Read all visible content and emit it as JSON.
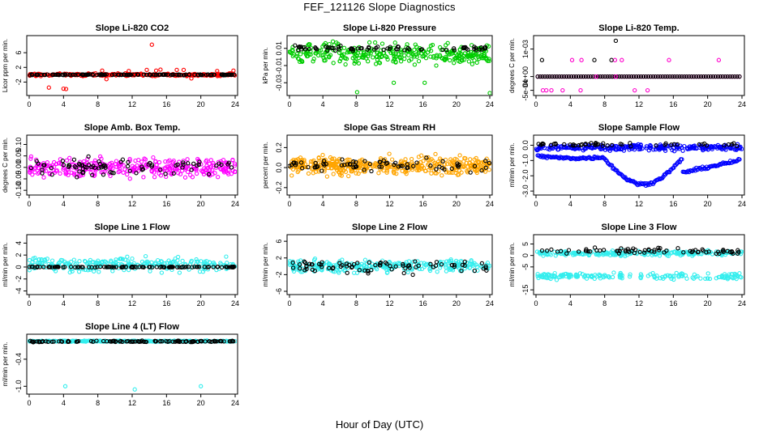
{
  "figure": {
    "title": "FEF_121126  Slope Diagnostics",
    "xlabel": "Hour of Day (UTC)"
  },
  "chart_data": [
    {
      "type": "scatter",
      "title": "Slope Li-820 CO2",
      "ylabel": "Licor ppm per min.",
      "xlim": [
        0,
        24
      ],
      "xticks": [
        0,
        4,
        8,
        12,
        16,
        20,
        24
      ],
      "ylim": [
        -5,
        10
      ],
      "yticks": [
        -2,
        2,
        6
      ],
      "ytick_labels": [
        "-2",
        "2",
        "6"
      ],
      "series": [
        {
          "color": "#ff0000",
          "n": 240,
          "center": 0,
          "spread": 0.35,
          "points": [
            [
              14.3,
              8.2
            ],
            [
              4.0,
              -3.8
            ],
            [
              4.3,
              -3.9
            ],
            [
              2.3,
              -3.5
            ],
            [
              8.5,
              1.1
            ],
            [
              13.7,
              1.3
            ],
            [
              14.8,
              1.1
            ],
            [
              15.3,
              1.4
            ],
            [
              17.2,
              1.3
            ],
            [
              18.0,
              1.3
            ],
            [
              23.8,
              1.1
            ],
            [
              9.0,
              -1.2
            ],
            [
              11.6,
              1.0
            ],
            [
              18.9,
              -1.0
            ],
            [
              21.9,
              1.0
            ]
          ]
        },
        {
          "color": "#000000",
          "n": 130,
          "center": 0,
          "spread": 0.12
        }
      ]
    },
    {
      "type": "scatter",
      "title": "Slope Li-820 Pressure",
      "ylabel": "kPa per min.",
      "xlim": [
        0,
        24
      ],
      "xticks": [
        0,
        4,
        8,
        12,
        16,
        20,
        24
      ],
      "ylim": [
        -0.042,
        0.022
      ],
      "yticks": [
        0.01,
        -0.01,
        -0.03
      ],
      "ytick_labels": [
        "0.01",
        "-0.01",
        "-0.03"
      ],
      "series": [
        {
          "color": "#00cc00",
          "n": 330,
          "center": 0.003,
          "spread": 0.012,
          "points": [
            [
              8.1,
              -0.041
            ],
            [
              24.0,
              -0.042
            ],
            [
              12.5,
              -0.03
            ],
            [
              16.2,
              -0.03
            ],
            [
              4.3,
              0.016
            ],
            [
              5.2,
              0.018
            ]
          ]
        },
        {
          "color": "#000000",
          "n": 70,
          "center": 0.01,
          "spread": 0.003
        }
      ]
    },
    {
      "type": "scatter",
      "title": "Slope Li-820 Temp.",
      "ylabel": "degrees C per min.",
      "xlim": [
        0,
        24
      ],
      "xticks": [
        0,
        4,
        8,
        12,
        16,
        20,
        24
      ],
      "ylim": [
        -0.0006,
        0.0014
      ],
      "yticks": [
        0.001,
        0,
        -0.0005
      ],
      "ytick_labels": [
        "1e-03",
        "0e+00",
        "-5e-04"
      ],
      "series": [
        {
          "color": "#ff00cc",
          "n": 0,
          "center": 0,
          "spread": 0,
          "points": [
            [
              4.2,
              0.0006
            ],
            [
              5.3,
              0.0006
            ],
            [
              9.2,
              0.0006
            ],
            [
              10.0,
              0.0006
            ],
            [
              15.5,
              0.0006
            ],
            [
              21.3,
              0.0006
            ],
            [
              0.8,
              -0.0005
            ],
            [
              1.2,
              -0.0005
            ],
            [
              1.8,
              -0.0005
            ],
            [
              3.1,
              -0.0005
            ],
            [
              5.2,
              -0.0005
            ],
            [
              11.5,
              -0.0005
            ],
            [
              13.0,
              -0.0005
            ],
            [
              7.0,
              0.0
            ],
            [
              9.3,
              0.0
            ]
          ]
        },
        {
          "color": "#000000",
          "n": 0,
          "center": 0,
          "spread": 0,
          "points": [
            [
              0.7,
              0.0006
            ],
            [
              6.8,
              0.0006
            ],
            [
              8.8,
              0.0006
            ],
            [
              9.3,
              0.0013
            ]
          ]
        }
      ],
      "line_series": [
        {
          "color": "#ff00cc",
          "y": 0
        },
        {
          "color": "#000000",
          "y": 0
        }
      ]
    },
    {
      "type": "scatter",
      "title": "Slope Amb. Box Temp.",
      "ylabel": "degrees C per min.",
      "xlim": [
        0,
        24
      ],
      "xticks": [
        0,
        4,
        8,
        12,
        16,
        20,
        24
      ],
      "ylim": [
        -0.11,
        0.13
      ],
      "yticks": [
        0.1,
        0.05,
        0.0,
        -0.05,
        -0.1
      ],
      "ytick_labels": [
        "0.10",
        "0.05",
        "0.00",
        "-0.05",
        "-0.10"
      ],
      "series": [
        {
          "color": "#ff00ff",
          "n": 330,
          "center": 0,
          "spread": 0.045
        },
        {
          "color": "#000000",
          "n": 80,
          "center": 0,
          "spread": 0.035
        }
      ]
    },
    {
      "type": "scatter",
      "title": "Slope Gas Stream RH",
      "ylabel": "percent per min.",
      "xlim": [
        0,
        24
      ],
      "xticks": [
        0,
        4,
        8,
        12,
        16,
        20,
        24
      ],
      "ylim": [
        -0.25,
        0.3
      ],
      "yticks": [
        0.2,
        0.0,
        -0.2
      ],
      "ytick_labels": [
        "0.2",
        "0.0",
        "-0.2"
      ],
      "series": [
        {
          "color": "#ffa500",
          "n": 420,
          "center": 0.02,
          "spread": 0.09
        },
        {
          "color": "#000000",
          "n": 70,
          "center": 0.02,
          "spread": 0.06
        }
      ]
    },
    {
      "type": "scatter",
      "title": "Slope Sample Flow",
      "ylabel": "ml/min per min.",
      "xlim": [
        0,
        24
      ],
      "xticks": [
        0,
        4,
        8,
        12,
        16,
        20,
        24
      ],
      "ylim": [
        -3.1,
        0.5
      ],
      "yticks": [
        0.0,
        -1.0,
        -2.0,
        -3.0
      ],
      "ytick_labels": [
        "0.0",
        "-1.0",
        "-2.0",
        "-3.0"
      ],
      "series": [
        {
          "color": "#0000ff",
          "n": 280,
          "center": -0.15,
          "spread": 0.2
        },
        {
          "color": "#0000ff",
          "n": 0,
          "center": 0,
          "spread": 0,
          "curve": true
        },
        {
          "color": "#000000",
          "n": 50,
          "center": 0.05,
          "spread": 0.1
        }
      ]
    },
    {
      "type": "scatter",
      "title": "Slope Line 1 Flow",
      "ylabel": "ml/min per min.",
      "xlim": [
        0,
        24
      ],
      "xticks": [
        0,
        4,
        8,
        12,
        16,
        20,
        24
      ],
      "ylim": [
        -4.2,
        5
      ],
      "yticks": [
        4,
        2,
        0,
        -2,
        -4
      ],
      "ytick_labels": [
        "4",
        "2",
        "0",
        "-2",
        "-4"
      ],
      "series": [
        {
          "color": "#33eeee",
          "n": 260,
          "center": 0.4,
          "spread": 1.3
        },
        {
          "color": "#000000",
          "n": 110,
          "center": 0,
          "spread": 0.06
        }
      ]
    },
    {
      "type": "scatter",
      "title": "Slope Line 2 Flow",
      "ylabel": "ml/min per min.",
      "xlim": [
        0,
        24
      ],
      "xticks": [
        0,
        4,
        8,
        12,
        16,
        20,
        24
      ],
      "ylim": [
        -6.2,
        7
      ],
      "yticks": [
        6,
        2,
        -2,
        -6
      ],
      "ytick_labels": [
        "6",
        "2",
        "-2",
        "-6"
      ],
      "series": [
        {
          "color": "#33eeee",
          "n": 300,
          "center": 0,
          "spread": 1.5
        },
        {
          "color": "#000000",
          "n": 80,
          "center": 0,
          "spread": 1.6
        }
      ]
    },
    {
      "type": "scatter",
      "title": "Slope Line 3 Flow",
      "ylabel": "ml/min per min.",
      "xlim": [
        0,
        24
      ],
      "xticks": [
        0,
        4,
        8,
        12,
        16,
        20,
        24
      ],
      "ylim": [
        -16,
        8
      ],
      "yticks": [
        5,
        0,
        -5,
        -15
      ],
      "ytick_labels": [
        "5",
        "0",
        "-5",
        "-15"
      ],
      "series": [
        {
          "color": "#33eeee",
          "n": 230,
          "center": 1,
          "spread": 1.2
        },
        {
          "color": "#33eeee",
          "n": 170,
          "center": -9,
          "spread": 1.5
        },
        {
          "color": "#000000",
          "n": 70,
          "center": 2,
          "spread": 1.4
        }
      ]
    },
    {
      "type": "scatter",
      "title": "Slope Line 4 (LT) Flow",
      "ylabel": "ml/min per min.",
      "xlim": [
        0,
        24
      ],
      "xticks": [
        0,
        4,
        8,
        12,
        16,
        20,
        24
      ],
      "ylim": [
        -1.12,
        0.1
      ],
      "yticks": [
        -0.4,
        -1.0
      ],
      "ytick_labels": [
        "-0.4",
        "-1.0"
      ],
      "series": [
        {
          "color": "#33eeee",
          "n": 320,
          "center": 0,
          "spread": 0.012,
          "points": [
            [
              4.2,
              -1.0
            ],
            [
              12.3,
              -1.07
            ],
            [
              20.0,
              -1.0
            ]
          ]
        },
        {
          "color": "#000000",
          "n": 110,
          "center": -0.005,
          "spread": 0.015
        }
      ]
    }
  ]
}
